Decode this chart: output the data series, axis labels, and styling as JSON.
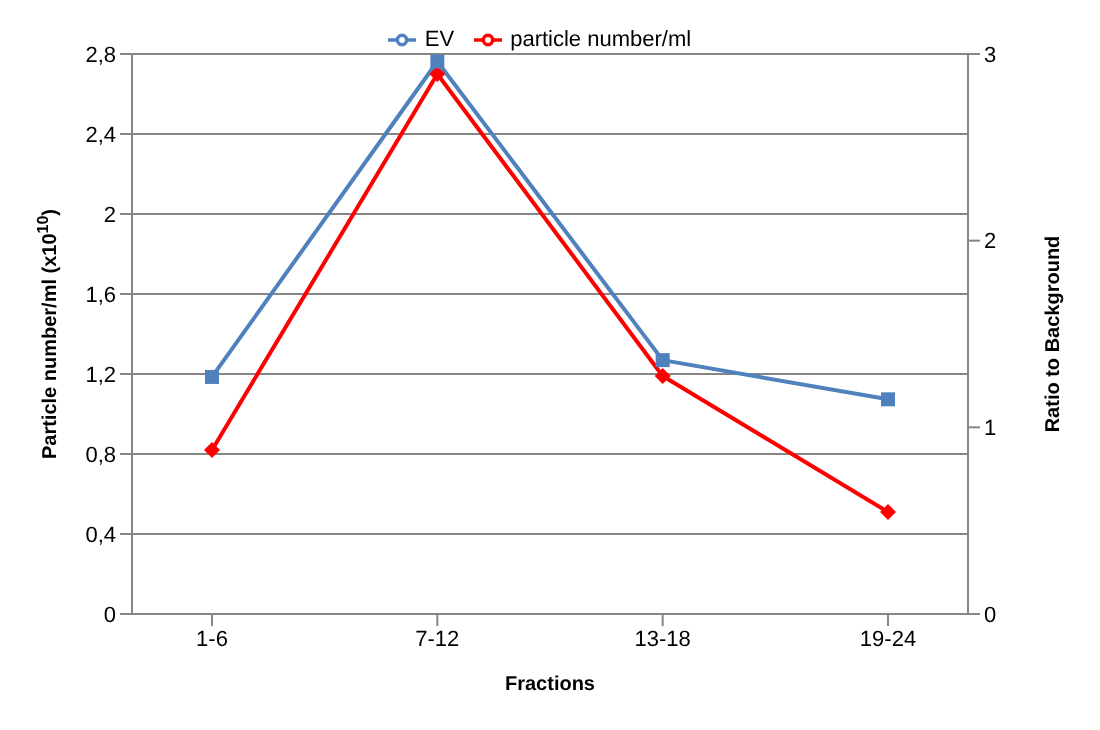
{
  "chart_data": {
    "type": "line",
    "xlabel": "Fractions",
    "ylabel": "Particle number/ml (x10$^{10}$)",
    "y2label": "Ratio to Background",
    "categories": [
      "1-6",
      "7-12",
      "13-18",
      "19-24"
    ],
    "series": [
      {
        "name": "particle number/ml",
        "color": "#ff0000",
        "values": [
          0.82,
          2.7,
          1.19,
          0.51
        ],
        "marker": "diamond"
      },
      {
        "name": "EV",
        "color": "#4f81bd",
        "values": [
          1.27,
          2.96,
          1.36,
          1.15
        ],
        "axis": "y2",
        "marker": "square"
      }
    ],
    "ylim": [
      0,
      2.8
    ],
    "yticks": [
      {
        "value": 0,
        "label": "0"
      },
      {
        "value": 0.4,
        "label": "0,4"
      },
      {
        "value": 0.8,
        "label": "0,8"
      },
      {
        "value": 1.2,
        "label": "1,2"
      },
      {
        "value": 1.6,
        "label": "1,6"
      },
      {
        "value": 2,
        "label": "2"
      },
      {
        "value": 2.4,
        "label": "2,4"
      },
      {
        "value": 2.8,
        "label": "2,8"
      }
    ],
    "y2lim": [
      0,
      3
    ],
    "y2ticks": [
      0,
      1,
      2,
      3
    ],
    "grid": "y",
    "legend": "top",
    "line_style": "solid"
  }
}
